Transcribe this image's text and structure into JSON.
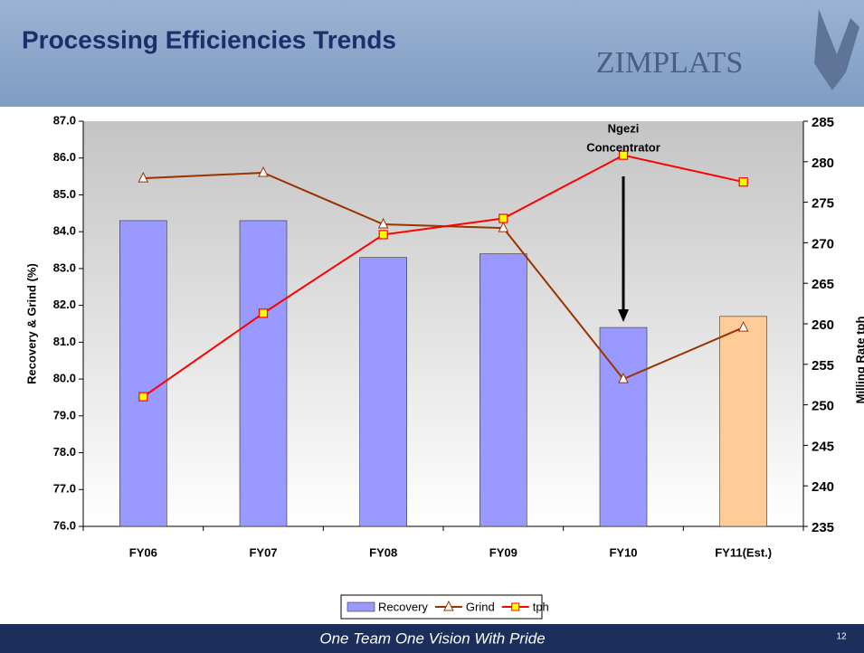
{
  "header": {
    "title": "Processing Efficiencies Trends",
    "logo": "ZIMPLATS"
  },
  "chart_data": {
    "type": "bar-line",
    "categories": [
      "FY06",
      "FY07",
      "FY08",
      "FY09",
      "FY10",
      "FY11(Est.)"
    ],
    "ylabel": "Recovery & Grind (%)",
    "y2label": "Milling Rate tph",
    "ylim": [
      76,
      87
    ],
    "yticks": [
      {
        "value": 76,
        "label": "76.0"
      },
      {
        "value": 77,
        "label": "77.0"
      },
      {
        "value": 78,
        "label": "78.0"
      },
      {
        "value": 79,
        "label": "79.0"
      },
      {
        "value": 80,
        "label": "80.0"
      },
      {
        "value": 81,
        "label": "81.0"
      },
      {
        "value": 82,
        "label": "82.0"
      },
      {
        "value": 83,
        "label": "83.0"
      },
      {
        "value": 84,
        "label": "84.0"
      },
      {
        "value": 85,
        "label": "85.0"
      },
      {
        "value": 86,
        "label": "86.0"
      },
      {
        "value": 87,
        "label": "87.0"
      }
    ],
    "y2lim": [
      235,
      285
    ],
    "y2ticks": [
      235,
      240,
      245,
      250,
      255,
      260,
      265,
      270,
      275,
      280,
      285
    ],
    "series": [
      {
        "name": "Recovery",
        "kind": "bar",
        "color": "#9999ff",
        "colors": [
          "#9999ff",
          "#9999ff",
          "#9999ff",
          "#9999ff",
          "#9999ff",
          "#ffcc99"
        ],
        "values": [
          84.3,
          84.3,
          83.3,
          83.4,
          81.4,
          81.7
        ]
      },
      {
        "name": "Grind",
        "kind": "line",
        "marker": "triangle",
        "color": "#993300",
        "values": [
          85.45,
          85.6,
          84.2,
          84.1,
          80.0,
          81.4
        ]
      },
      {
        "name": "tph",
        "kind": "line",
        "marker": "square",
        "color": "#ff0000",
        "axis": "y2",
        "values": [
          251.0,
          261.3,
          271.0,
          273.0,
          280.8,
          277.5
        ]
      }
    ],
    "annotation": [
      "Ngezi",
      "Concentrator"
    ]
  },
  "footer": {
    "text": "One Team One Vision With Pride",
    "page": "12"
  }
}
